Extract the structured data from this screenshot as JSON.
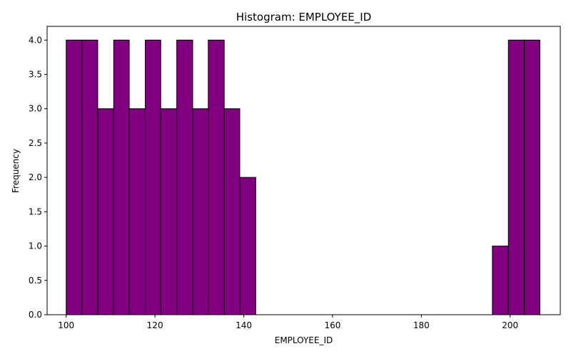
{
  "chart_data": {
    "type": "bar",
    "title": "Histogram: EMPLOYEE_ID",
    "xlabel": "EMPLOYEE_ID",
    "ylabel": "Frequency",
    "xlim": [
      95.7,
      211.3
    ],
    "ylim": [
      0,
      4.2
    ],
    "xticks": [
      "100",
      "120",
      "140",
      "160",
      "180",
      "200"
    ],
    "yticks": [
      "0.0",
      "0.5",
      "1.0",
      "1.5",
      "2.0",
      "2.5",
      "3.0",
      "3.5",
      "4.0"
    ],
    "grid": false,
    "bar_color": "#800080",
    "edge_color": "#000000",
    "bins": [
      {
        "start": 100.0,
        "end": 103.6,
        "count": 4
      },
      {
        "start": 103.6,
        "end": 107.1,
        "count": 4
      },
      {
        "start": 107.1,
        "end": 110.7,
        "count": 3
      },
      {
        "start": 110.7,
        "end": 114.2,
        "count": 4
      },
      {
        "start": 114.2,
        "end": 117.8,
        "count": 3
      },
      {
        "start": 117.8,
        "end": 121.3,
        "count": 4
      },
      {
        "start": 121.3,
        "end": 124.9,
        "count": 3
      },
      {
        "start": 124.9,
        "end": 128.5,
        "count": 4
      },
      {
        "start": 128.5,
        "end": 132.0,
        "count": 3
      },
      {
        "start": 132.0,
        "end": 135.6,
        "count": 4
      },
      {
        "start": 135.6,
        "end": 139.1,
        "count": 3
      },
      {
        "start": 139.1,
        "end": 142.7,
        "count": 2
      },
      {
        "start": 142.7,
        "end": 146.2,
        "count": 0
      },
      {
        "start": 146.2,
        "end": 149.8,
        "count": 0
      },
      {
        "start": 149.8,
        "end": 153.4,
        "count": 0
      },
      {
        "start": 153.4,
        "end": 156.9,
        "count": 0
      },
      {
        "start": 156.9,
        "end": 160.5,
        "count": 0
      },
      {
        "start": 160.5,
        "end": 164.0,
        "count": 0
      },
      {
        "start": 164.0,
        "end": 167.6,
        "count": 0
      },
      {
        "start": 167.6,
        "end": 171.1,
        "count": 0
      },
      {
        "start": 171.1,
        "end": 174.7,
        "count": 0
      },
      {
        "start": 174.7,
        "end": 178.3,
        "count": 0
      },
      {
        "start": 178.3,
        "end": 181.8,
        "count": 0
      },
      {
        "start": 181.8,
        "end": 185.4,
        "count": 0
      },
      {
        "start": 185.4,
        "end": 188.9,
        "count": 0
      },
      {
        "start": 188.9,
        "end": 192.5,
        "count": 0
      },
      {
        "start": 192.5,
        "end": 196.0,
        "count": 0
      },
      {
        "start": 196.0,
        "end": 199.6,
        "count": 1
      },
      {
        "start": 199.6,
        "end": 203.2,
        "count": 4
      },
      {
        "start": 203.2,
        "end": 206.7,
        "count": 4
      }
    ]
  }
}
